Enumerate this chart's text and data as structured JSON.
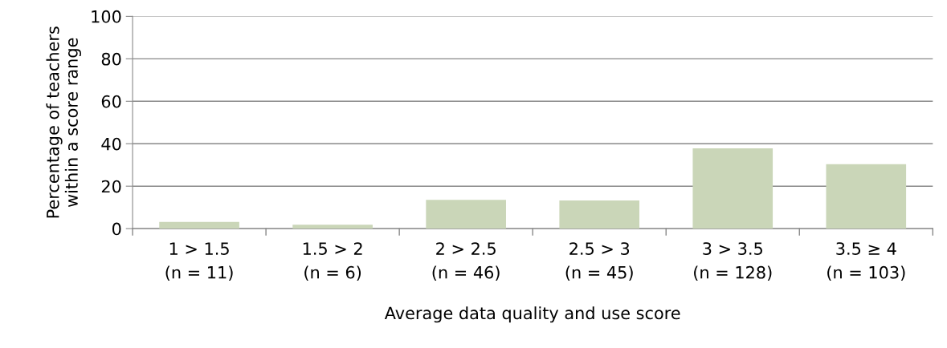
{
  "chart_data": {
    "type": "bar",
    "xlabel": "Average data quality and use score",
    "ylabel": "Percentage of teachers\nwithin a score range",
    "categories": [
      "1 > 1.5\n(n = 11)",
      "1.5 > 2\n(n = 6)",
      "2 > 2.5\n(n = 46)",
      "2.5 > 3\n(n = 45)",
      "3 > 3.5\n(n = 128)",
      "3.5 ≥ 4\n(n = 103)"
    ],
    "values": [
      3.2,
      1.8,
      13.6,
      13.3,
      37.8,
      30.4
    ],
    "color": "#cad6b8",
    "ylim": [
      0,
      100
    ],
    "yticks": [
      0,
      20,
      40,
      60,
      80,
      100
    ],
    "grid": "y",
    "legend": false
  }
}
